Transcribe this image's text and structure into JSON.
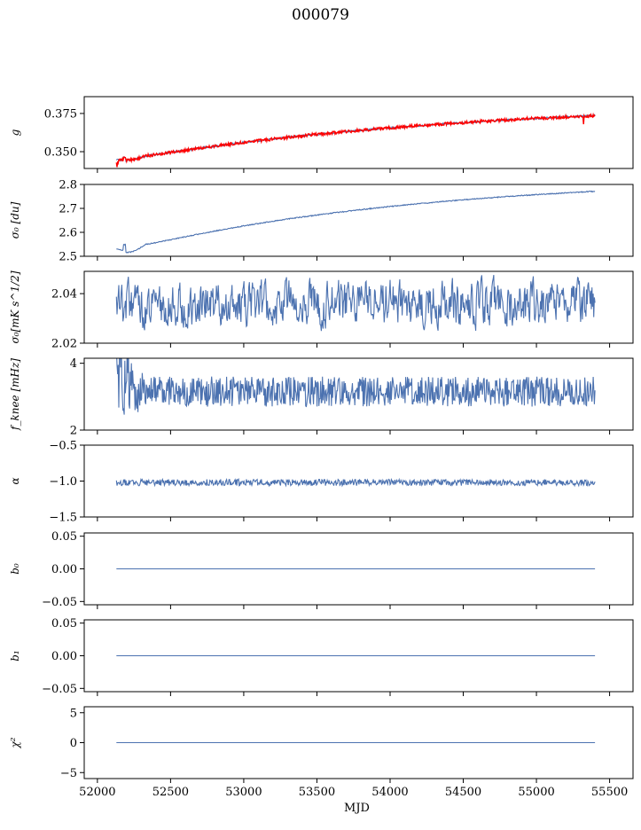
{
  "title": "000079",
  "chart_data": [
    {
      "type": "line",
      "ylabel": "g",
      "yticks": [
        0.35,
        0.375
      ],
      "ytick_labels": [
        "0.350",
        "0.375"
      ],
      "ylim": [
        0.339,
        0.386
      ],
      "xlim": [
        51910,
        55660
      ],
      "series": [
        {
          "color": "#4c72b0",
          "gen": {
            "kind": "sat",
            "a": 0.3436,
            "c": 0.383,
            "k": 0.7,
            "dip": 0.0025,
            "noise": 0.0006,
            "seed": 1
          }
        },
        {
          "color": "#ff0000",
          "gen": {
            "kind": "sat",
            "a": 0.3436,
            "c": 0.383,
            "k": 0.7,
            "dip": 0.0025,
            "noise": 0.001,
            "seed": 2,
            "spikes": true
          }
        }
      ]
    },
    {
      "type": "line",
      "ylabel": "σ₀ [du]",
      "yticks": [
        2.5,
        2.6,
        2.7,
        2.8
      ],
      "ytick_labels": [
        "2.5",
        "2.6",
        "2.7",
        "2.8"
      ],
      "ylim": [
        2.5,
        2.8
      ],
      "xlim": [
        51910,
        55660
      ],
      "series": [
        {
          "color": "#4c72b0",
          "gen": {
            "kind": "sat",
            "a": 2.515,
            "c": 2.835,
            "k": 0.62,
            "dip": 0.04,
            "noise": 0.002,
            "seed": 3
          }
        }
      ]
    },
    {
      "type": "line",
      "ylabel": "σ₀[mK s^1/2]",
      "yticks": [
        2.02,
        2.04
      ],
      "ytick_labels": [
        "2.02",
        "2.04"
      ],
      "ylim": [
        2.02,
        2.049
      ],
      "xlim": [
        51910,
        55660
      ],
      "series": [
        {
          "color": "#4c72b0",
          "gen": {
            "kind": "noise",
            "mean": 2.036,
            "amp": 0.006,
            "smooth": 3,
            "seed": 4
          }
        }
      ]
    },
    {
      "type": "line",
      "ylabel": "f_knee [mHz]",
      "yticks": [
        2,
        4
      ],
      "ytick_labels": [
        "2",
        "4"
      ],
      "ylim": [
        2.0,
        4.15
      ],
      "xlim": [
        51910,
        55660
      ],
      "series": [
        {
          "color": "#4c72b0",
          "gen": {
            "kind": "noise",
            "mean": 3.15,
            "amp": 0.45,
            "smooth": 1,
            "seed": 5,
            "startBoost": 0.55
          }
        }
      ]
    },
    {
      "type": "line",
      "ylabel": "α",
      "yticks": [
        -1.5,
        -1.0,
        -0.5
      ],
      "ytick_labels": [
        "−1.5",
        "−1.0",
        "−0.5"
      ],
      "ylim": [
        -1.5,
        -0.5
      ],
      "xlim": [
        51910,
        55660
      ],
      "series": [
        {
          "color": "#4c72b0",
          "gen": {
            "kind": "noise",
            "mean": -1.02,
            "amp": 0.045,
            "smooth": 1,
            "seed": 6
          }
        }
      ]
    },
    {
      "type": "line",
      "ylabel": "b₀",
      "yticks": [
        -0.05,
        0.0,
        0.05
      ],
      "ytick_labels": [
        "−0.05",
        "0.00",
        "0.05"
      ],
      "ylim": [
        -0.055,
        0.055
      ],
      "xlim": [
        51910,
        55660
      ],
      "series": [
        {
          "color": "#4c72b0",
          "gen": {
            "kind": "const",
            "value": 0.0
          }
        }
      ]
    },
    {
      "type": "line",
      "ylabel": "b₁",
      "yticks": [
        -0.05,
        0.0,
        0.05
      ],
      "ytick_labels": [
        "−0.05",
        "0.00",
        "0.05"
      ],
      "ylim": [
        -0.055,
        0.055
      ],
      "xlim": [
        51910,
        55660
      ],
      "series": [
        {
          "color": "#4c72b0",
          "gen": {
            "kind": "const",
            "value": 0.0
          }
        }
      ]
    },
    {
      "type": "line",
      "ylabel": "χ²",
      "yticks": [
        -5,
        0,
        5
      ],
      "ytick_labels": [
        "−5",
        "0",
        "5"
      ],
      "ylim": [
        -6,
        6
      ],
      "xlim": [
        51910,
        55660
      ],
      "xlabel": "MJD",
      "xticks": [
        52000,
        52500,
        53000,
        53500,
        54000,
        54500,
        55000,
        55500
      ],
      "xtick_labels": [
        "52000",
        "52500",
        "53000",
        "53500",
        "54000",
        "54500",
        "55000",
        "55500"
      ],
      "series": [
        {
          "color": "#4c72b0",
          "gen": {
            "kind": "const",
            "value": 0.0
          }
        }
      ]
    }
  ],
  "x_start": 52130,
  "x_end": 55400
}
